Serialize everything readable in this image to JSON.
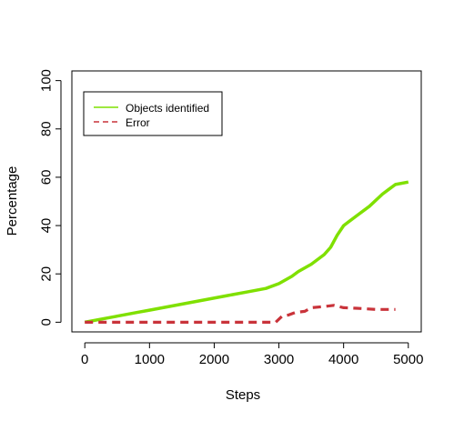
{
  "chart_data": {
    "type": "line",
    "title": "",
    "xlabel": "Steps",
    "ylabel": "Percentage",
    "xlim": [
      -200,
      5200
    ],
    "ylim": [
      -4,
      104
    ],
    "x_ticks": [
      0,
      1000,
      2000,
      3000,
      4000,
      5000
    ],
    "y_ticks": [
      0,
      20,
      40,
      60,
      80,
      100
    ],
    "x_tick_labels": [
      "0",
      "1000",
      "2000",
      "3000",
      "4000",
      "5000"
    ],
    "y_tick_labels": [
      "0",
      "20",
      "40",
      "60",
      "80",
      "100"
    ],
    "grid": false,
    "legend_position": "top-left",
    "series": [
      {
        "name": "Objects identified",
        "color": "#7fe000",
        "style": "solid",
        "x": [
          0,
          200,
          500,
          800,
          1000,
          1300,
          1600,
          1900,
          2200,
          2500,
          2800,
          3000,
          3200,
          3300,
          3500,
          3700,
          3800,
          3900,
          4000,
          4200,
          4400,
          4600,
          4700,
          4800,
          5000
        ],
        "y": [
          0,
          1,
          2.5,
          4,
          5,
          6.5,
          8,
          9.5,
          11,
          12.5,
          14,
          16,
          19,
          21,
          24,
          28,
          31,
          36,
          40,
          44,
          48,
          53,
          55,
          57,
          58
        ]
      },
      {
        "name": "Error",
        "color": "#c9333a",
        "style": "dashed",
        "x": [
          0,
          500,
          1000,
          1500,
          2000,
          2500,
          2950,
          3050,
          3150,
          3250,
          3400,
          3500,
          3700,
          3850,
          4000,
          4200,
          4500,
          4800
        ],
        "y": [
          0,
          0,
          0,
          0,
          0,
          0,
          0,
          2.5,
          3,
          4,
          4.5,
          6,
          6.5,
          7,
          6,
          5.8,
          5.3,
          5.3
        ]
      }
    ]
  }
}
